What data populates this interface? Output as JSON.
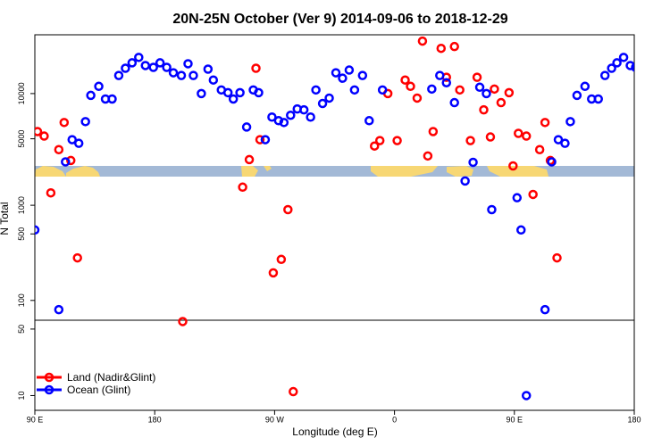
{
  "chart_data": {
    "type": "scatter",
    "title": "20N-25N October (Ver 9)   2014-09-06 to 2018-12-29",
    "xlabel": "Longitude (deg E)",
    "ylabel": "N Total",
    "x_ticks": [
      {
        "value": 90,
        "label": "90 E"
      },
      {
        "value": 180,
        "label": "180"
      },
      {
        "value": 270,
        "label": "90 W"
      },
      {
        "value": 360,
        "label": "0"
      },
      {
        "value": 450,
        "label": "90 E"
      },
      {
        "value": 540,
        "label": "180"
      }
    ],
    "xlim": [
      90,
      540
    ],
    "upper_panel": {
      "scale": "linear",
      "y_ticks": [
        5000,
        10000
      ]
    },
    "lower_panel": {
      "scale": "log",
      "ylim": [
        7,
        2000
      ],
      "y_ticks": [
        10,
        50,
        100,
        500,
        1000
      ],
      "reference_line": 50
    },
    "legend_position": "bottom-left",
    "colors": {
      "land": "#ff0000",
      "ocean": "#0000ff",
      "map_ocean": "#a3b9d6",
      "map_land": "#f7d774"
    },
    "series": [
      {
        "name": "Land (Nadir&Glint)",
        "color": "#ff0000",
        "points": [
          [
            92,
            5800
          ],
          [
            97,
            5300
          ],
          [
            102,
            1350
          ],
          [
            108,
            3800
          ],
          [
            112,
            6800
          ],
          [
            117,
            2600
          ],
          [
            122,
            280
          ],
          [
            201,
            60
          ],
          [
            246,
            1550
          ],
          [
            251,
            2700
          ],
          [
            256,
            12800
          ],
          [
            259,
            4900
          ],
          [
            269,
            195
          ],
          [
            275,
            270
          ],
          [
            280,
            900
          ],
          [
            284,
            11
          ],
          [
            345,
            4200
          ],
          [
            349,
            4800
          ],
          [
            355,
            10000
          ],
          [
            362,
            4800
          ],
          [
            368,
            11500
          ],
          [
            372,
            10800
          ],
          [
            377,
            9500
          ],
          [
            381,
            15800
          ],
          [
            385,
            3100
          ],
          [
            389,
            5800
          ],
          [
            395,
            15000
          ],
          [
            399,
            11800
          ],
          [
            405,
            15200
          ],
          [
            409,
            10400
          ],
          [
            417,
            4800
          ],
          [
            422,
            11800
          ],
          [
            427,
            8200
          ],
          [
            432,
            5200
          ],
          [
            435,
            10500
          ],
          [
            440,
            9000
          ],
          [
            446,
            10100
          ],
          [
            449,
            2000
          ],
          [
            453,
            5600
          ],
          [
            459,
            5300
          ],
          [
            464,
            1300
          ],
          [
            469,
            3800
          ],
          [
            473,
            6800
          ],
          [
            477,
            2600
          ],
          [
            482,
            280
          ]
        ]
      },
      {
        "name": "Ocean (Glint)",
        "color": "#0000ff",
        "points": [
          [
            90,
            550
          ],
          [
            108,
            80
          ],
          [
            113,
            2450
          ],
          [
            118,
            4900
          ],
          [
            123,
            4500
          ],
          [
            128,
            6900
          ],
          [
            132,
            9800
          ],
          [
            138,
            10800
          ],
          [
            143,
            9400
          ],
          [
            148,
            9400
          ],
          [
            153,
            12000
          ],
          [
            158,
            12800
          ],
          [
            163,
            13400
          ],
          [
            168,
            14000
          ],
          [
            173,
            13100
          ],
          [
            179,
            12900
          ],
          [
            184,
            13400
          ],
          [
            189,
            12900
          ],
          [
            194,
            12300
          ],
          [
            200,
            12000
          ],
          [
            205,
            13300
          ],
          [
            209,
            12000
          ],
          [
            215,
            10000
          ],
          [
            220,
            12700
          ],
          [
            224,
            11500
          ],
          [
            230,
            10400
          ],
          [
            235,
            10100
          ],
          [
            239,
            9400
          ],
          [
            244,
            10100
          ],
          [
            249,
            6300
          ],
          [
            254,
            10400
          ],
          [
            258,
            10100
          ],
          [
            263,
            4900
          ],
          [
            268,
            7400
          ],
          [
            273,
            7000
          ],
          [
            277,
            6800
          ],
          [
            282,
            7600
          ],
          [
            287,
            8300
          ],
          [
            292,
            8200
          ],
          [
            297,
            7400
          ],
          [
            301,
            10400
          ],
          [
            306,
            8900
          ],
          [
            311,
            9500
          ],
          [
            316,
            12300
          ],
          [
            321,
            11700
          ],
          [
            326,
            12600
          ],
          [
            330,
            10400
          ],
          [
            336,
            12000
          ],
          [
            341,
            7000
          ],
          [
            351,
            10400
          ],
          [
            388,
            10500
          ],
          [
            394,
            12000
          ],
          [
            399,
            11200
          ],
          [
            405,
            9000
          ],
          [
            413,
            1800
          ],
          [
            419,
            2400
          ],
          [
            424,
            10700
          ],
          [
            429,
            10000
          ],
          [
            433,
            900
          ],
          [
            452,
            1200
          ],
          [
            455,
            550
          ],
          [
            459,
            10
          ],
          [
            473,
            80
          ],
          [
            478,
            2450
          ],
          [
            483,
            4900
          ],
          [
            488,
            4500
          ],
          [
            492,
            6900
          ],
          [
            497,
            9800
          ],
          [
            503,
            10800
          ],
          [
            508,
            9400
          ],
          [
            513,
            9400
          ],
          [
            518,
            12000
          ],
          [
            523,
            12800
          ],
          [
            527,
            13400
          ],
          [
            532,
            14000
          ],
          [
            537,
            13100
          ],
          [
            541,
            12900
          ]
        ]
      }
    ]
  }
}
